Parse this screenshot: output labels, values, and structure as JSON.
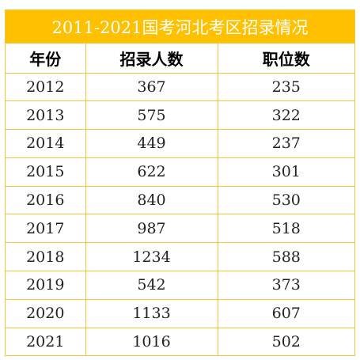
{
  "table": {
    "title": "2011-2021国考河北考区招录情况",
    "headers": [
      "年份",
      "招录人数",
      "职位数"
    ],
    "rows": [
      [
        "2012",
        "367",
        "235"
      ],
      [
        "2013",
        "575",
        "322"
      ],
      [
        "2014",
        "449",
        "237"
      ],
      [
        "2015",
        "622",
        "301"
      ],
      [
        "2016",
        "840",
        "530"
      ],
      [
        "2017",
        "987",
        "518"
      ],
      [
        "2018",
        "1234",
        "588"
      ],
      [
        "2019",
        "542",
        "373"
      ],
      [
        "2020",
        "1133",
        "607"
      ],
      [
        "2021",
        "1016",
        "502"
      ]
    ]
  },
  "colors": {
    "title_bg": "#ffc000",
    "title_text": "#ffffff",
    "grid": "#f3c53a"
  }
}
